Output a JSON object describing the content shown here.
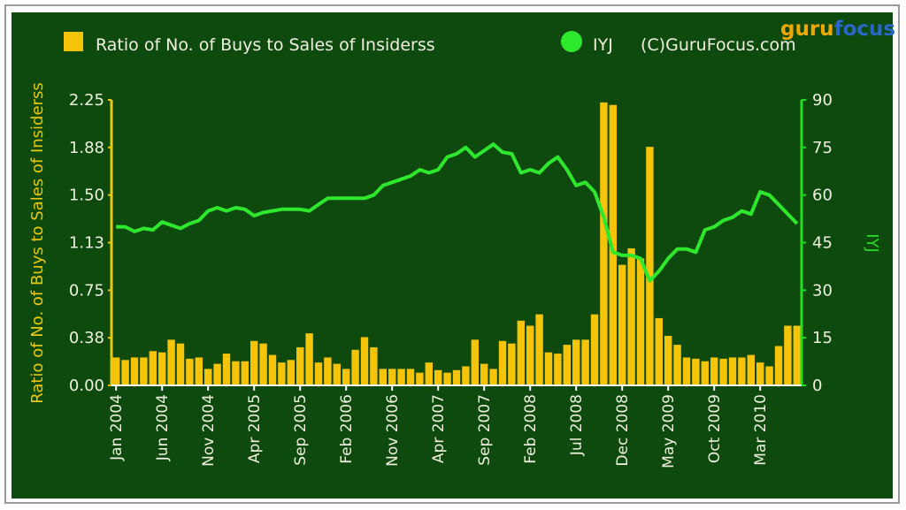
{
  "logo": {
    "part1": "guru",
    "part2": "focus"
  },
  "legend": {
    "bars_label": "Ratio of No. of Buys to Sales of Insiderss",
    "line_label": "IYJ",
    "copyright": "(C)GuruFocus.com"
  },
  "colors": {
    "background": "#0e4a0e",
    "bar": "#f5c40a",
    "line": "#2ee82e",
    "left_axis": "#e8c814",
    "right_axis": "#22dd22"
  },
  "chart_data": {
    "type": "bar+line",
    "ylabel_left": "Ratio of No. of Buys to Sales of Insiderss",
    "ylabel_right": "IYJ",
    "left_ticks": [
      "0.00",
      "0.38",
      "0.75",
      "1.13",
      "1.50",
      "1.88",
      "2.25"
    ],
    "right_ticks": [
      "0",
      "15",
      "30",
      "45",
      "60",
      "75",
      "90"
    ],
    "ylim_left": [
      0,
      2.25
    ],
    "ylim_right": [
      0,
      90
    ],
    "x_tick_labels": [
      "Jan 2004",
      "Jun 2004",
      "Nov 2004",
      "Apr 2005",
      "Sep 2005",
      "Feb 2006",
      "Nov 2006",
      "Apr 2007",
      "Sep 2007",
      "Feb 2008",
      "Jul 2008",
      "Dec 2008",
      "May 2009",
      "Oct 2009",
      "Mar 2010"
    ],
    "x_tick_month_index": [
      0,
      5,
      10,
      15,
      20,
      25,
      30,
      35,
      40,
      45,
      50,
      55,
      60,
      65,
      70
    ],
    "months_count": 75,
    "series": [
      {
        "name": "Ratio of No. of Buys to Sales of Insiderss",
        "kind": "bar",
        "axis": "left",
        "values": [
          0.22,
          0.2,
          0.22,
          0.22,
          0.27,
          0.26,
          0.36,
          0.33,
          0.21,
          0.22,
          0.13,
          0.17,
          0.25,
          0.19,
          0.19,
          0.35,
          0.33,
          0.24,
          0.18,
          0.2,
          0.3,
          0.41,
          0.18,
          0.22,
          0.17,
          0.13,
          0.28,
          0.38,
          0.3,
          0.13,
          0.13,
          0.13,
          0.13,
          0.1,
          0.18,
          0.12,
          0.1,
          0.12,
          0.15,
          0.36,
          0.17,
          0.13,
          0.35,
          0.33,
          0.51,
          0.47,
          0.56,
          0.26,
          0.25,
          0.32,
          0.36,
          0.36,
          0.56,
          2.23,
          2.21,
          0.95,
          1.08,
          1.0,
          1.88,
          0.53,
          0.39,
          0.32,
          0.22,
          0.21,
          0.19,
          0.22,
          0.21,
          0.22,
          0.22,
          0.24,
          0.18,
          0.15,
          0.31,
          0.47,
          0.47
        ]
      },
      {
        "name": "IYJ",
        "kind": "line",
        "axis": "right",
        "values": [
          50,
          50,
          48.5,
          49.5,
          49,
          51.5,
          50.5,
          49.5,
          51,
          52,
          55,
          56,
          55,
          56,
          55.5,
          53.5,
          54.5,
          55,
          55.5,
          55.5,
          55.5,
          55,
          57,
          59,
          59,
          59,
          59,
          59,
          60,
          63,
          64,
          65,
          66,
          68,
          67,
          68,
          72,
          73,
          75,
          72,
          74,
          76,
          73.5,
          73,
          67,
          68,
          67,
          70,
          72,
          68,
          63,
          64,
          61,
          53,
          42,
          41,
          41,
          40,
          33,
          36,
          40,
          43,
          43,
          42,
          49,
          50,
          52,
          53,
          55,
          54,
          61,
          60,
          57,
          54,
          51
        ]
      }
    ]
  }
}
